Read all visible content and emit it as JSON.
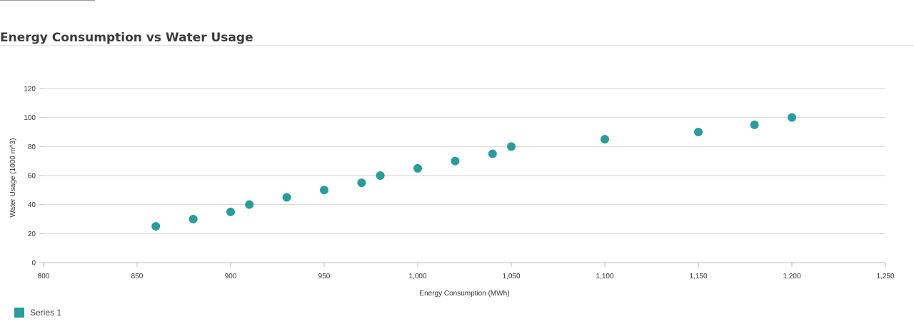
{
  "chart_data": {
    "type": "scatter",
    "title": "Energy Consumption vs Water Usage",
    "xlabel": "Energy Consumption (MWh)",
    "ylabel": "Water Usage (1000 m^3)",
    "xlim": [
      800,
      1250
    ],
    "ylim": [
      0,
      120
    ],
    "x_ticks": [
      800,
      850,
      900,
      950,
      1000,
      1050,
      1100,
      1150,
      1200,
      1250
    ],
    "x_tick_labels": [
      "800",
      "850",
      "900",
      "950",
      "1,000",
      "1,050",
      "1,100",
      "1,150",
      "1,200",
      "1,250"
    ],
    "y_ticks": [
      0,
      20,
      40,
      60,
      80,
      100,
      120
    ],
    "y_tick_labels": [
      "0",
      "20",
      "40",
      "60",
      "80",
      "100",
      "120"
    ],
    "grid": true,
    "legend_position": "bottom-left",
    "series": [
      {
        "name": "Series 1",
        "color": "#2a9d9a",
        "points": [
          {
            "x": 860,
            "y": 25
          },
          {
            "x": 880,
            "y": 30
          },
          {
            "x": 900,
            "y": 35
          },
          {
            "x": 910,
            "y": 40
          },
          {
            "x": 930,
            "y": 45
          },
          {
            "x": 950,
            "y": 50
          },
          {
            "x": 970,
            "y": 55
          },
          {
            "x": 980,
            "y": 60
          },
          {
            "x": 1000,
            "y": 65
          },
          {
            "x": 1020,
            "y": 70
          },
          {
            "x": 1040,
            "y": 75
          },
          {
            "x": 1050,
            "y": 80
          },
          {
            "x": 1100,
            "y": 85
          },
          {
            "x": 1150,
            "y": 90
          },
          {
            "x": 1180,
            "y": 95
          },
          {
            "x": 1200,
            "y": 100
          }
        ]
      }
    ]
  }
}
